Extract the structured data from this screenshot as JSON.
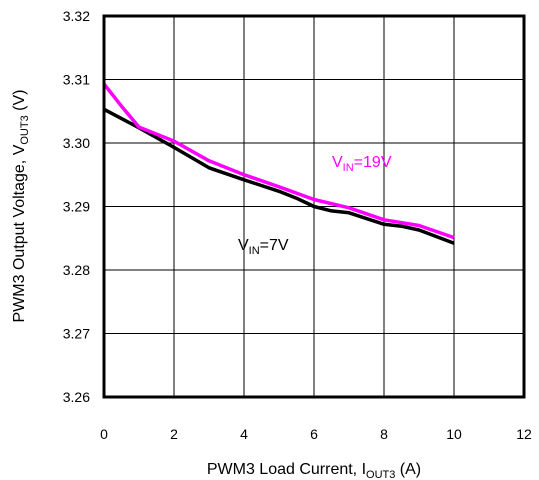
{
  "chart_data": {
    "type": "line",
    "xlabel": {
      "main": "PWM3 Load Current, I",
      "sub": "OUT3",
      "unit": " (A)"
    },
    "ylabel": {
      "main": "PWM3 Output Voltage, V",
      "sub": "OUT3",
      "unit": " (V)"
    },
    "xlim": [
      0,
      12
    ],
    "ylim": [
      3.26,
      3.32
    ],
    "x_ticks": [
      "0",
      "2",
      "4",
      "6",
      "8",
      "10",
      "12"
    ],
    "y_ticks": [
      "3.26",
      "3.27",
      "3.28",
      "3.29",
      "3.30",
      "3.31",
      "3.32"
    ],
    "grid": true,
    "series": [
      {
        "name": "VIN=7V",
        "color": "#000000",
        "x": [
          0,
          1,
          2,
          3,
          4,
          5,
          5.5,
          6,
          6.5,
          7,
          8,
          8.5,
          9,
          10
        ],
        "y": [
          3.3053,
          3.3024,
          3.2993,
          3.2961,
          3.2942,
          3.2924,
          3.2913,
          3.29,
          3.2893,
          3.289,
          3.2872,
          3.2869,
          3.2863,
          3.2842
        ]
      },
      {
        "name": "VIN=19V",
        "color": "#ff00ff",
        "x": [
          0,
          0.5,
          1,
          2,
          3,
          4,
          5,
          6,
          7,
          8,
          9,
          10
        ],
        "y": [
          3.3093,
          3.3058,
          3.3025,
          3.3003,
          3.2972,
          3.295,
          3.2931,
          3.2911,
          3.2898,
          3.2879,
          3.287,
          3.2851
        ]
      }
    ],
    "annotations": [
      {
        "main": "V",
        "sub": "IN",
        "rest": "=19V",
        "color": "#ff00ff"
      },
      {
        "main": "V",
        "sub": "IN",
        "rest": "=7V",
        "color": "#000000"
      }
    ]
  }
}
